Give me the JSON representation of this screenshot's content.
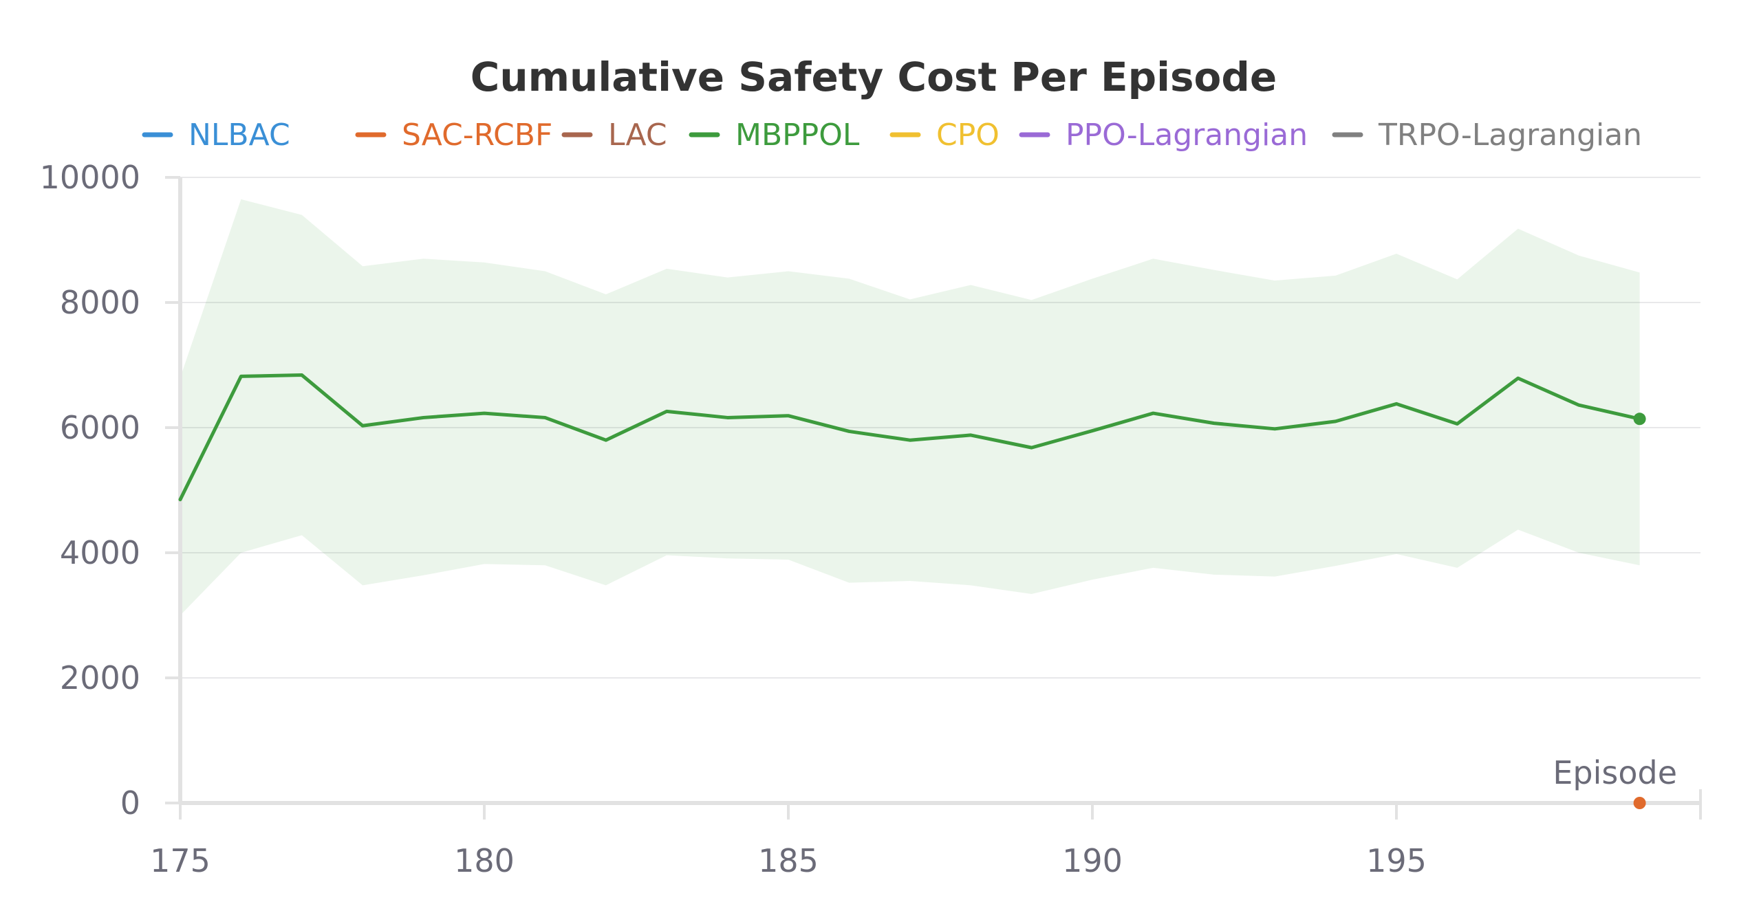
{
  "chart_data": {
    "type": "line",
    "title": "Cumulative Safety Cost Per Episode",
    "xlabel": "Episode",
    "ylabel": "",
    "xlim": [
      175,
      200
    ],
    "ylim": [
      0,
      10000
    ],
    "x_ticks": [
      "175",
      "180",
      "185",
      "190",
      "195"
    ],
    "y_ticks": [
      "0",
      "2000",
      "4000",
      "6000",
      "8000",
      "10000"
    ],
    "grid": "horizontal",
    "legend_position": "top",
    "legend": [
      {
        "name": "NLBAC",
        "color": "#3a8fd6"
      },
      {
        "name": "SAC-RCBF",
        "color": "#e06a2c"
      },
      {
        "name": "LAC",
        "color": "#a8664e"
      },
      {
        "name": "MBPPOL",
        "color": "#3d9b3d"
      },
      {
        "name": "CPO",
        "color": "#f0c030"
      },
      {
        "name": "PPO-Lagrangian",
        "color": "#9a6ad6"
      },
      {
        "name": "TRPO-Lagrangian",
        "color": "#808080"
      }
    ],
    "series": [
      {
        "name": "MBPPOL",
        "color": "#3d9b3d",
        "x": [
          175,
          176,
          177,
          178,
          179,
          180,
          181,
          182,
          183,
          184,
          185,
          186,
          187,
          188,
          189,
          190,
          191,
          192,
          193,
          194,
          195,
          196,
          197,
          198,
          199
        ],
        "values": [
          4850,
          6820,
          6840,
          6030,
          6160,
          6230,
          6160,
          5800,
          6260,
          6160,
          6190,
          5940,
          5800,
          5880,
          5680,
          5950,
          6230,
          6070,
          5980,
          6100,
          6380,
          6060,
          6790,
          6360,
          6140
        ],
        "upper": [
          6800,
          9650,
          9400,
          8580,
          8700,
          8640,
          8500,
          8130,
          8540,
          8400,
          8500,
          8380,
          8050,
          8280,
          8040,
          8380,
          8700,
          8520,
          8350,
          8430,
          8780,
          8370,
          9180,
          8750,
          8480
        ],
        "lower": [
          3000,
          4000,
          4280,
          3480,
          3640,
          3820,
          3800,
          3480,
          3960,
          3910,
          3890,
          3520,
          3550,
          3480,
          3340,
          3570,
          3760,
          3650,
          3620,
          3790,
          3980,
          3760,
          4370,
          4000,
          3800
        ]
      },
      {
        "name": "SAC-RCBF",
        "color": "#e06a2c",
        "x": [
          199
        ],
        "values": [
          0
        ]
      }
    ]
  }
}
